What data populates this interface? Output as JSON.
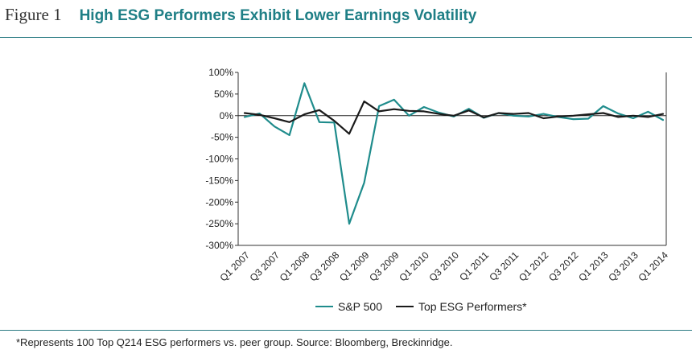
{
  "figure": {
    "number": "Figure 1",
    "title": "High ESG Performers Exhibit Lower Earnings Volatility",
    "footnote": "*Represents 100 Top Q214 ESG performers vs. peer group. Source: Bloomberg, Breckinridge."
  },
  "colors": {
    "accent": "#1f7f86",
    "rule": "#2b7b83",
    "sp500": "#1f8c8c",
    "top_esg": "#1a1a1a"
  },
  "chart_data": {
    "type": "line",
    "title": "High ESG Performers Exhibit Lower Earnings Volatility",
    "xlabel": "",
    "ylabel": "",
    "ylim": [
      -300,
      100
    ],
    "grid": false,
    "yticks": [
      "100%",
      "50%",
      "0%",
      "-50%",
      "-100%",
      "-150%",
      "-200%",
      "-250%",
      "-300%"
    ],
    "xticks": [
      "Q1 2007",
      "Q3 2007",
      "Q1 2008",
      "Q3 2008",
      "Q1 2009",
      "Q3 2009",
      "Q1 2010",
      "Q3 2010",
      "Q1 2011",
      "Q3 2011",
      "Q1 2012",
      "Q3 2012",
      "Q1 2013",
      "Q3 2013",
      "Q1 2014"
    ],
    "x": [
      "Q1 2007",
      "Q2 2007",
      "Q3 2007",
      "Q4 2007",
      "Q1 2008",
      "Q2 2008",
      "Q3 2008",
      "Q4 2008",
      "Q1 2009",
      "Q2 2009",
      "Q3 2009",
      "Q4 2009",
      "Q1 2010",
      "Q2 2010",
      "Q3 2010",
      "Q4 2010",
      "Q1 2011",
      "Q2 2011",
      "Q3 2011",
      "Q4 2011",
      "Q1 2012",
      "Q2 2012",
      "Q3 2012",
      "Q4 2012",
      "Q1 2013",
      "Q2 2013",
      "Q3 2013",
      "Q4 2013",
      "Q1 2014"
    ],
    "series": [
      {
        "name": "S&P 500",
        "values": [
          -3,
          5,
          -25,
          -45,
          75,
          -15,
          -16,
          -250,
          -155,
          22,
          37,
          0,
          20,
          7,
          -2,
          16,
          -5,
          6,
          0,
          -2,
          4,
          -3,
          -8,
          -7,
          22,
          5,
          -6,
          9,
          -10
        ]
      },
      {
        "name": "Top ESG Performers*",
        "values": [
          6,
          2,
          -6,
          -15,
          3,
          13,
          -12,
          -42,
          33,
          10,
          15,
          11,
          10,
          4,
          0,
          12,
          -4,
          6,
          4,
          6,
          -6,
          -2,
          0,
          3,
          6,
          -3,
          0,
          -3,
          4
        ]
      }
    ],
    "legend_position": "bottom-center"
  }
}
